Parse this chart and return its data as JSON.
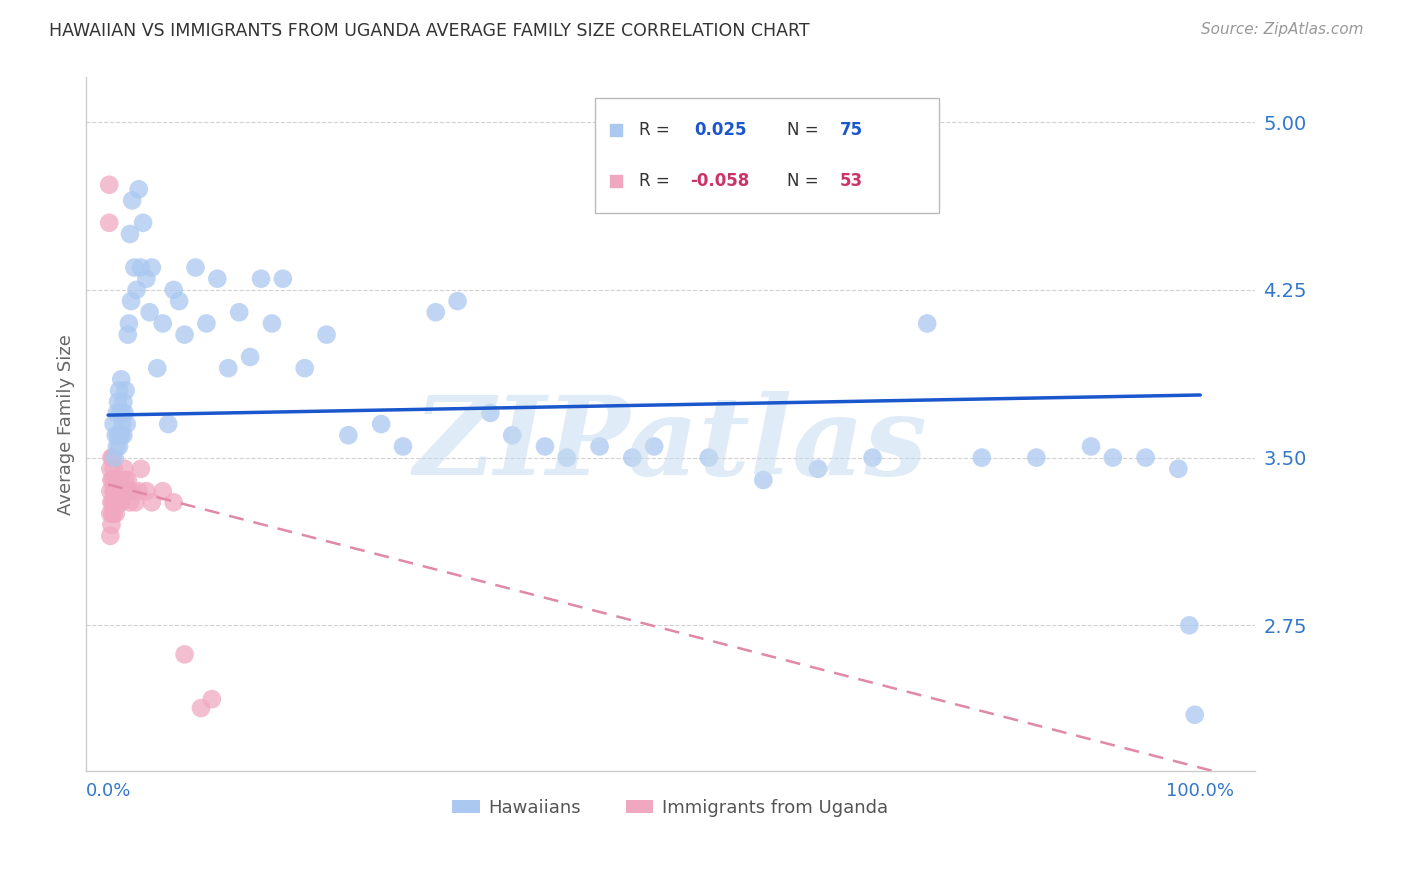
{
  "title": "HAWAIIAN VS IMMIGRANTS FROM UGANDA AVERAGE FAMILY SIZE CORRELATION CHART",
  "source": "Source: ZipAtlas.com",
  "ylabel": "Average Family Size",
  "yticks": [
    2.75,
    3.5,
    4.25,
    5.0
  ],
  "ymin": 2.1,
  "ymax": 5.2,
  "xmin": -0.02,
  "xmax": 1.05,
  "watermark": "ZIPatlas",
  "hawaiians_color": "#aac8f0",
  "uganda_color": "#f0a8c0",
  "line1_color": "#1a56cc",
  "line2_color": "#e088a8",
  "axis_color": "#3377cc",
  "grid_color": "#cccccc",
  "h_line_x0": 0.0,
  "h_line_x1": 1.0,
  "h_line_y0": 3.69,
  "h_line_y1": 3.78,
  "u_line_x0": 0.0,
  "u_line_x1": 1.05,
  "u_line_y0": 3.38,
  "u_line_y1": 2.05,
  "hawaiians_x": [
    0.005,
    0.006,
    0.007,
    0.008,
    0.008,
    0.009,
    0.009,
    0.01,
    0.01,
    0.011,
    0.011,
    0.012,
    0.012,
    0.013,
    0.013,
    0.014,
    0.014,
    0.015,
    0.016,
    0.017,
    0.018,
    0.019,
    0.02,
    0.021,
    0.022,
    0.024,
    0.026,
    0.028,
    0.03,
    0.032,
    0.035,
    0.038,
    0.04,
    0.045,
    0.05,
    0.055,
    0.06,
    0.065,
    0.07,
    0.08,
    0.09,
    0.1,
    0.11,
    0.12,
    0.13,
    0.14,
    0.15,
    0.16,
    0.18,
    0.2,
    0.22,
    0.25,
    0.27,
    0.3,
    0.32,
    0.35,
    0.37,
    0.4,
    0.42,
    0.45,
    0.48,
    0.5,
    0.55,
    0.6,
    0.65,
    0.7,
    0.75,
    0.8,
    0.85,
    0.9,
    0.92,
    0.95,
    0.98,
    0.99,
    0.995
  ],
  "hawaiians_y": [
    3.65,
    3.5,
    3.6,
    3.7,
    3.55,
    3.75,
    3.6,
    3.8,
    3.55,
    3.7,
    3.6,
    3.85,
    3.6,
    3.7,
    3.65,
    3.75,
    3.6,
    3.7,
    3.8,
    3.65,
    4.05,
    4.1,
    4.5,
    4.2,
    4.65,
    4.35,
    4.25,
    4.7,
    4.35,
    4.55,
    4.3,
    4.15,
    4.35,
    3.9,
    4.1,
    3.65,
    4.25,
    4.2,
    4.05,
    4.35,
    4.1,
    4.3,
    3.9,
    4.15,
    3.95,
    4.3,
    4.1,
    4.3,
    3.9,
    4.05,
    3.6,
    3.65,
    3.55,
    4.15,
    4.2,
    3.7,
    3.6,
    3.55,
    3.5,
    3.55,
    3.5,
    3.55,
    3.5,
    3.4,
    3.45,
    3.5,
    4.1,
    3.5,
    3.5,
    3.55,
    3.5,
    3.5,
    3.45,
    2.75,
    2.35
  ],
  "uganda_x": [
    0.001,
    0.001,
    0.002,
    0.002,
    0.002,
    0.002,
    0.003,
    0.003,
    0.003,
    0.003,
    0.004,
    0.004,
    0.004,
    0.004,
    0.005,
    0.005,
    0.005,
    0.005,
    0.006,
    0.006,
    0.006,
    0.007,
    0.007,
    0.007,
    0.008,
    0.008,
    0.009,
    0.009,
    0.01,
    0.01,
    0.011,
    0.011,
    0.012,
    0.012,
    0.013,
    0.014,
    0.015,
    0.016,
    0.017,
    0.018,
    0.019,
    0.02,
    0.022,
    0.025,
    0.028,
    0.03,
    0.035,
    0.04,
    0.05,
    0.06,
    0.07,
    0.085,
    0.095
  ],
  "uganda_y": [
    4.72,
    4.55,
    3.45,
    3.35,
    3.25,
    3.15,
    3.5,
    3.4,
    3.3,
    3.2,
    3.5,
    3.4,
    3.3,
    3.25,
    3.45,
    3.35,
    3.3,
    3.25,
    3.4,
    3.35,
    3.3,
    3.35,
    3.3,
    3.25,
    3.4,
    3.35,
    3.35,
    3.3,
    3.4,
    3.35,
    3.35,
    3.3,
    3.35,
    3.3,
    3.35,
    3.35,
    3.45,
    3.4,
    3.35,
    3.4,
    3.35,
    3.3,
    3.35,
    3.3,
    3.35,
    3.45,
    3.35,
    3.3,
    3.35,
    3.3,
    2.62,
    2.38,
    2.42
  ]
}
